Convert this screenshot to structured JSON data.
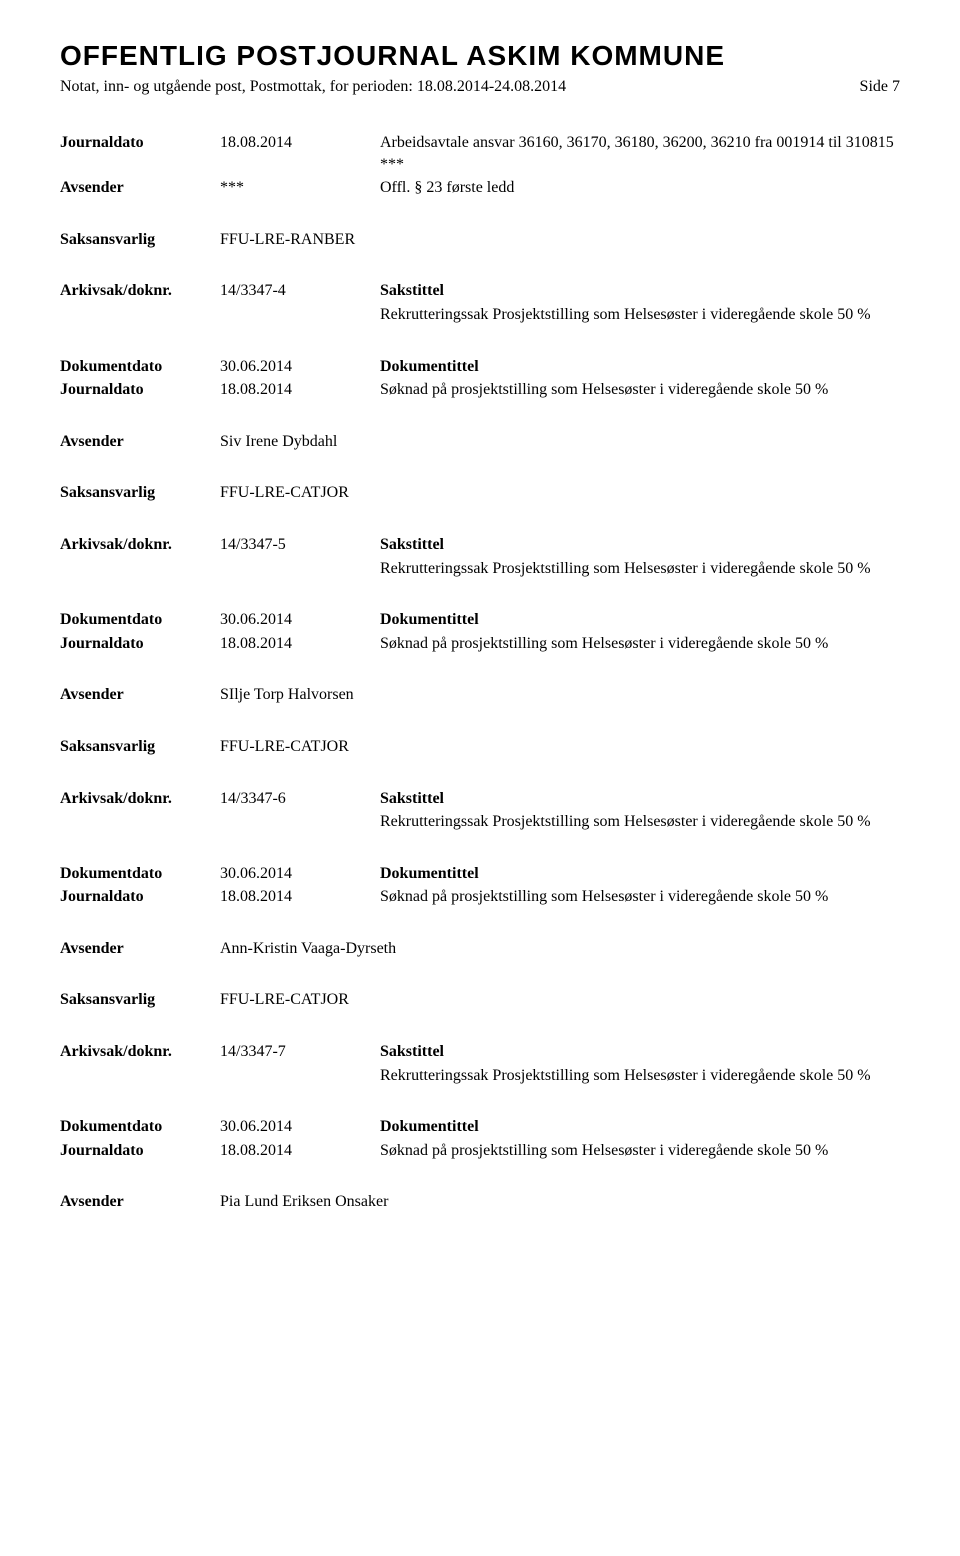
{
  "header": {
    "title": "OFFENTLIG POSTJOURNAL ASKIM KOMMUNE",
    "subtitle": "Notat, inn- og utgående post, Postmottak, for perioden: 18.08.2014-24.08.2014",
    "page": "Side 7"
  },
  "labels": {
    "journaldato": "Journaldato",
    "avsender": "Avsender",
    "saksansvarlig": "Saksansvarlig",
    "arkivsak": "Arkivsak/doknr.",
    "dokumentdato": "Dokumentdato",
    "sakstittel": "Sakstittel",
    "dokumentittel": "Dokumentittel"
  },
  "top_block": {
    "journaldato": "18.08.2014",
    "journal_text": "Arbeidsavtale ansvar 36160, 36170, 36180, 36200, 36210 fra 001914 til 310815 ***",
    "avsender": "***",
    "avsender_text": "Offl. § 23 første ledd",
    "saksansvarlig": "FFU-LRE-RANBER"
  },
  "entries": [
    {
      "arkivsak": "14/3347-4",
      "sakstittel": "Rekrutteringssak Prosjektstilling som Helsesøster i videregående skole 50 %",
      "dokumentdato": "30.06.2014",
      "journaldato": "18.08.2014",
      "dokumentittel": "Søknad på prosjektstilling som Helsesøster i videregående skole 50 %",
      "avsender": "Siv Irene Dybdahl",
      "saksansvarlig": "FFU-LRE-CATJOR"
    },
    {
      "arkivsak": "14/3347-5",
      "sakstittel": "Rekrutteringssak Prosjektstilling som Helsesøster i videregående skole 50 %",
      "dokumentdato": "30.06.2014",
      "journaldato": "18.08.2014",
      "dokumentittel": "Søknad på prosjektstilling som Helsesøster i videregående skole 50 %",
      "avsender": "SIlje Torp Halvorsen",
      "saksansvarlig": "FFU-LRE-CATJOR"
    },
    {
      "arkivsak": "14/3347-6",
      "sakstittel": "Rekrutteringssak Prosjektstilling som Helsesøster i videregående skole 50 %",
      "dokumentdato": "30.06.2014",
      "journaldato": "18.08.2014",
      "dokumentittel": "Søknad på prosjektstilling som Helsesøster i videregående skole 50 %",
      "avsender": "Ann-Kristin Vaaga-Dyrseth",
      "saksansvarlig": "FFU-LRE-CATJOR"
    },
    {
      "arkivsak": "14/3347-7",
      "sakstittel": "Rekrutteringssak Prosjektstilling som Helsesøster i videregående skole 50 %",
      "dokumentdato": "30.06.2014",
      "journaldato": "18.08.2014",
      "dokumentittel": "Søknad på prosjektstilling som Helsesøster i videregående skole 50 %",
      "avsender": "Pia Lund Eriksen Onsaker",
      "saksansvarlig": ""
    }
  ]
}
